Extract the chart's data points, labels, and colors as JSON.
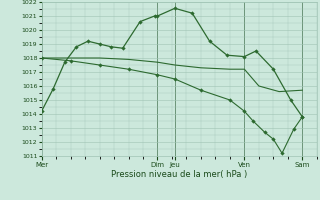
{
  "background_color": "#cce8dc",
  "grid_color": "#a0c4b4",
  "line_color": "#2d6a30",
  "vline_color": "#2d5a30",
  "title": "Pression niveau de la mer( hPa )",
  "ylim": [
    1011,
    1022
  ],
  "yticks": [
    1011,
    1012,
    1013,
    1014,
    1015,
    1016,
    1017,
    1018,
    1019,
    1020,
    1021,
    1022
  ],
  "day_labels": [
    "Mer",
    "Dim",
    "Jeu",
    "Ven",
    "Sam"
  ],
  "day_positions": [
    0.0,
    4.0,
    4.6,
    7.0,
    9.0
  ],
  "vline_positions": [
    0.0,
    4.0,
    4.6,
    7.0,
    9.0
  ],
  "xlim": [
    0,
    9.5
  ],
  "line1_x": [
    0,
    0.4,
    0.8,
    1.2,
    1.6,
    2.0,
    2.4,
    2.8,
    3.4,
    3.9,
    4.0,
    4.6,
    5.2,
    5.8,
    6.4,
    7.0,
    7.4,
    8.0,
    8.6,
    9.0
  ],
  "line1_y": [
    1014.2,
    1015.8,
    1017.7,
    1018.8,
    1019.2,
    1019.0,
    1018.8,
    1018.7,
    1020.6,
    1021.0,
    1021.0,
    1021.55,
    1021.2,
    1019.2,
    1018.2,
    1018.1,
    1018.5,
    1017.2,
    1015.0,
    1013.8
  ],
  "line2_x": [
    0,
    1.0,
    2.0,
    3.0,
    4.0,
    4.6,
    5.5,
    6.5,
    7.0,
    7.5,
    8.2,
    9.0
  ],
  "line2_y": [
    1018.0,
    1018.0,
    1018.0,
    1017.9,
    1017.7,
    1017.5,
    1017.3,
    1017.2,
    1017.2,
    1016.0,
    1015.6,
    1015.7
  ],
  "line3_x": [
    0,
    1.0,
    2.0,
    3.0,
    4.0,
    4.6,
    5.5,
    6.5,
    7.0,
    7.3,
    7.7,
    8.0,
    8.3,
    8.7,
    9.0
  ],
  "line3_y": [
    1018.0,
    1017.8,
    1017.5,
    1017.2,
    1016.8,
    1016.5,
    1015.7,
    1015.0,
    1014.2,
    1013.5,
    1012.7,
    1012.2,
    1011.2,
    1012.9,
    1013.8
  ]
}
